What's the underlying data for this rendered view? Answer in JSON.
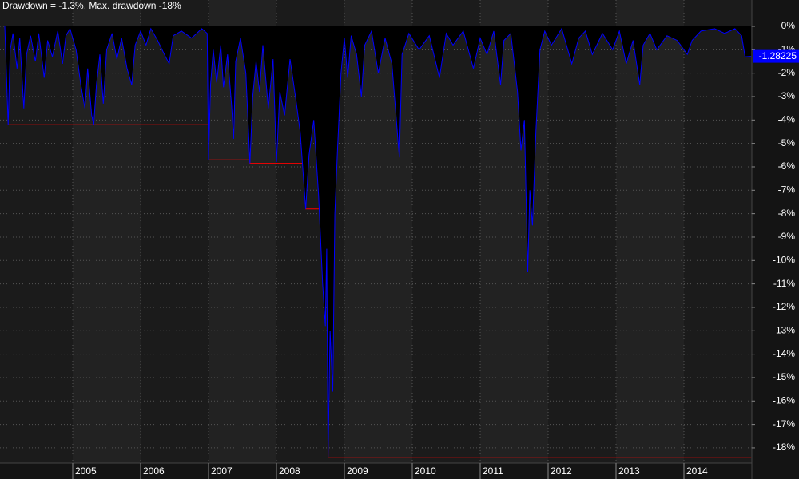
{
  "chart_data": {
    "type": "line",
    "title": "Drawdown = -1.3%, Max. drawdown -18%",
    "xlim": [
      2004,
      2015
    ],
    "xticks": [
      2005,
      2006,
      2007,
      2008,
      2009,
      2010,
      2011,
      2012,
      2013,
      2014
    ],
    "ylim": [
      -18.65,
      1.125
    ],
    "yticks": [
      {
        "value": 0,
        "label": "0%"
      },
      {
        "value": -1,
        "label": "-1%"
      },
      {
        "value": -2,
        "label": "-2%"
      },
      {
        "value": -3,
        "label": "-3%"
      },
      {
        "value": -4,
        "label": "-4%"
      },
      {
        "value": -5,
        "label": "-5%"
      },
      {
        "value": -6,
        "label": "-6%"
      },
      {
        "value": -7,
        "label": "-7%"
      },
      {
        "value": -8,
        "label": "-8%"
      },
      {
        "value": -9,
        "label": "-9%"
      },
      {
        "value": -10,
        "label": "-10%"
      },
      {
        "value": -11,
        "label": "-11%"
      },
      {
        "value": -12,
        "label": "-12%"
      },
      {
        "value": -13,
        "label": "-13%"
      },
      {
        "value": -14,
        "label": "-14%"
      },
      {
        "value": -15,
        "label": "-15%"
      },
      {
        "value": -16,
        "label": "-16%"
      },
      {
        "value": -17,
        "label": "-17%"
      },
      {
        "value": -18,
        "label": "-18%"
      }
    ],
    "grid": true,
    "series": [
      {
        "name": "Drawdown",
        "color": "#0000ff",
        "x": [
          2004.0,
          2004.05,
          2004.08,
          2004.12,
          2004.18,
          2004.22,
          2004.28,
          2004.32,
          2004.38,
          2004.45,
          2004.5,
          2004.58,
          2004.63,
          2004.7,
          2004.78,
          2004.85,
          2004.9,
          2004.96,
          2005.05,
          2005.12,
          2005.18,
          2005.22,
          2005.28,
          2005.31,
          2005.35,
          2005.4,
          2005.45,
          2005.5,
          2005.58,
          2005.65,
          2005.72,
          2005.8,
          2005.87,
          2005.92,
          2006.0,
          2006.08,
          2006.15,
          2006.25,
          2006.35,
          2006.42,
          2006.48,
          2006.6,
          2006.75,
          2006.9,
          2006.98,
          2007.0,
          2007.03,
          2007.07,
          2007.12,
          2007.18,
          2007.22,
          2007.28,
          2007.34,
          2007.37,
          2007.4,
          2007.47,
          2007.55,
          2007.61,
          2007.65,
          2007.7,
          2007.75,
          2007.8,
          2007.88,
          2007.95,
          2008.0,
          2008.05,
          2008.12,
          2008.2,
          2008.28,
          2008.35,
          2008.43,
          2008.48,
          2008.55,
          2008.62,
          2008.68,
          2008.72,
          2008.74,
          2008.76,
          2008.79,
          2008.83,
          2008.86,
          2008.9,
          2008.95,
          2009.0,
          2009.05,
          2009.1,
          2009.18,
          2009.25,
          2009.3,
          2009.4,
          2009.5,
          2009.6,
          2009.7,
          2009.81,
          2009.85,
          2009.95,
          2010.1,
          2010.25,
          2010.4,
          2010.5,
          2010.6,
          2010.75,
          2010.9,
          2011.0,
          2011.1,
          2011.2,
          2011.3,
          2011.35,
          2011.45,
          2011.55,
          2011.6,
          2011.65,
          2011.7,
          2011.73,
          2011.77,
          2011.82,
          2011.88,
          2011.95,
          2012.05,
          2012.2,
          2012.35,
          2012.45,
          2012.55,
          2012.65,
          2012.8,
          2012.95,
          2013.05,
          2013.15,
          2013.25,
          2013.35,
          2013.4,
          2013.5,
          2013.6,
          2013.75,
          2013.9,
          2014.0,
          2014.05,
          2014.12,
          2014.25,
          2014.45,
          2014.6,
          2014.75,
          2014.85,
          2014.9,
          2014.99
        ],
        "values": [
          0,
          -4.2,
          -1.0,
          -0.3,
          -1.8,
          -0.5,
          -3.5,
          -1.2,
          -0.4,
          -1.5,
          -0.3,
          -2.2,
          -0.6,
          -1.3,
          -0.2,
          -1.6,
          -0.4,
          -0.1,
          -1.0,
          -2.5,
          -3.5,
          -1.8,
          -3.8,
          -4.2,
          -2.5,
          -1.2,
          -3.3,
          -1.0,
          -0.3,
          -1.4,
          -0.5,
          -1.8,
          -2.5,
          -0.8,
          -0.2,
          -0.8,
          -0.1,
          -0.6,
          -1.2,
          -1.6,
          -0.4,
          -0.2,
          -0.5,
          -0.1,
          -0.3,
          -5.7,
          -2.5,
          -1.0,
          -2.4,
          -0.8,
          -2.6,
          -1.2,
          -3.4,
          -4.8,
          -1.5,
          -0.5,
          -2.0,
          -5.85,
          -3.0,
          -1.5,
          -2.8,
          -0.8,
          -3.5,
          -1.4,
          -5.8,
          -2.8,
          -3.8,
          -1.4,
          -3.0,
          -4.5,
          -7.8,
          -5.5,
          -4.0,
          -7.2,
          -11.0,
          -12.8,
          -9.5,
          -18.4,
          -13.0,
          -15.6,
          -8.0,
          -5.2,
          -2.0,
          -0.5,
          -2.2,
          -0.4,
          -1.2,
          -3.0,
          -0.8,
          -0.2,
          -2.0,
          -0.5,
          -1.6,
          -5.6,
          -1.2,
          -0.3,
          -1.0,
          -0.4,
          -2.2,
          -0.3,
          -0.8,
          -0.2,
          -1.8,
          -0.5,
          -1.2,
          -0.2,
          -2.5,
          -0.6,
          -0.3,
          -2.8,
          -5.3,
          -4.0,
          -10.5,
          -7.0,
          -8.5,
          -4.5,
          -1.0,
          -0.2,
          -0.8,
          -0.1,
          -1.6,
          -0.5,
          -0.2,
          -1.2,
          -0.3,
          -1.0,
          -0.2,
          -1.6,
          -0.6,
          -2.5,
          -0.8,
          -0.3,
          -1.0,
          -0.4,
          -0.6,
          -1.0,
          -1.2,
          -0.6,
          -0.2,
          -0.1,
          -0.3,
          -0.1,
          -0.4,
          -1.3,
          -1.28225
        ]
      },
      {
        "name": "Max. drawdown",
        "color": "#ff0000",
        "x": [
          2004.05,
          2007.0,
          2007.0,
          2007.61,
          2007.61,
          2008.43,
          2008.43,
          2008.76,
          2008.76,
          2014.99
        ],
        "values": [
          -4.2,
          -4.2,
          -5.7,
          -5.7,
          -5.85,
          -5.85,
          -7.8,
          -7.8,
          -18.4,
          -18.4
        ]
      }
    ]
  }
}
